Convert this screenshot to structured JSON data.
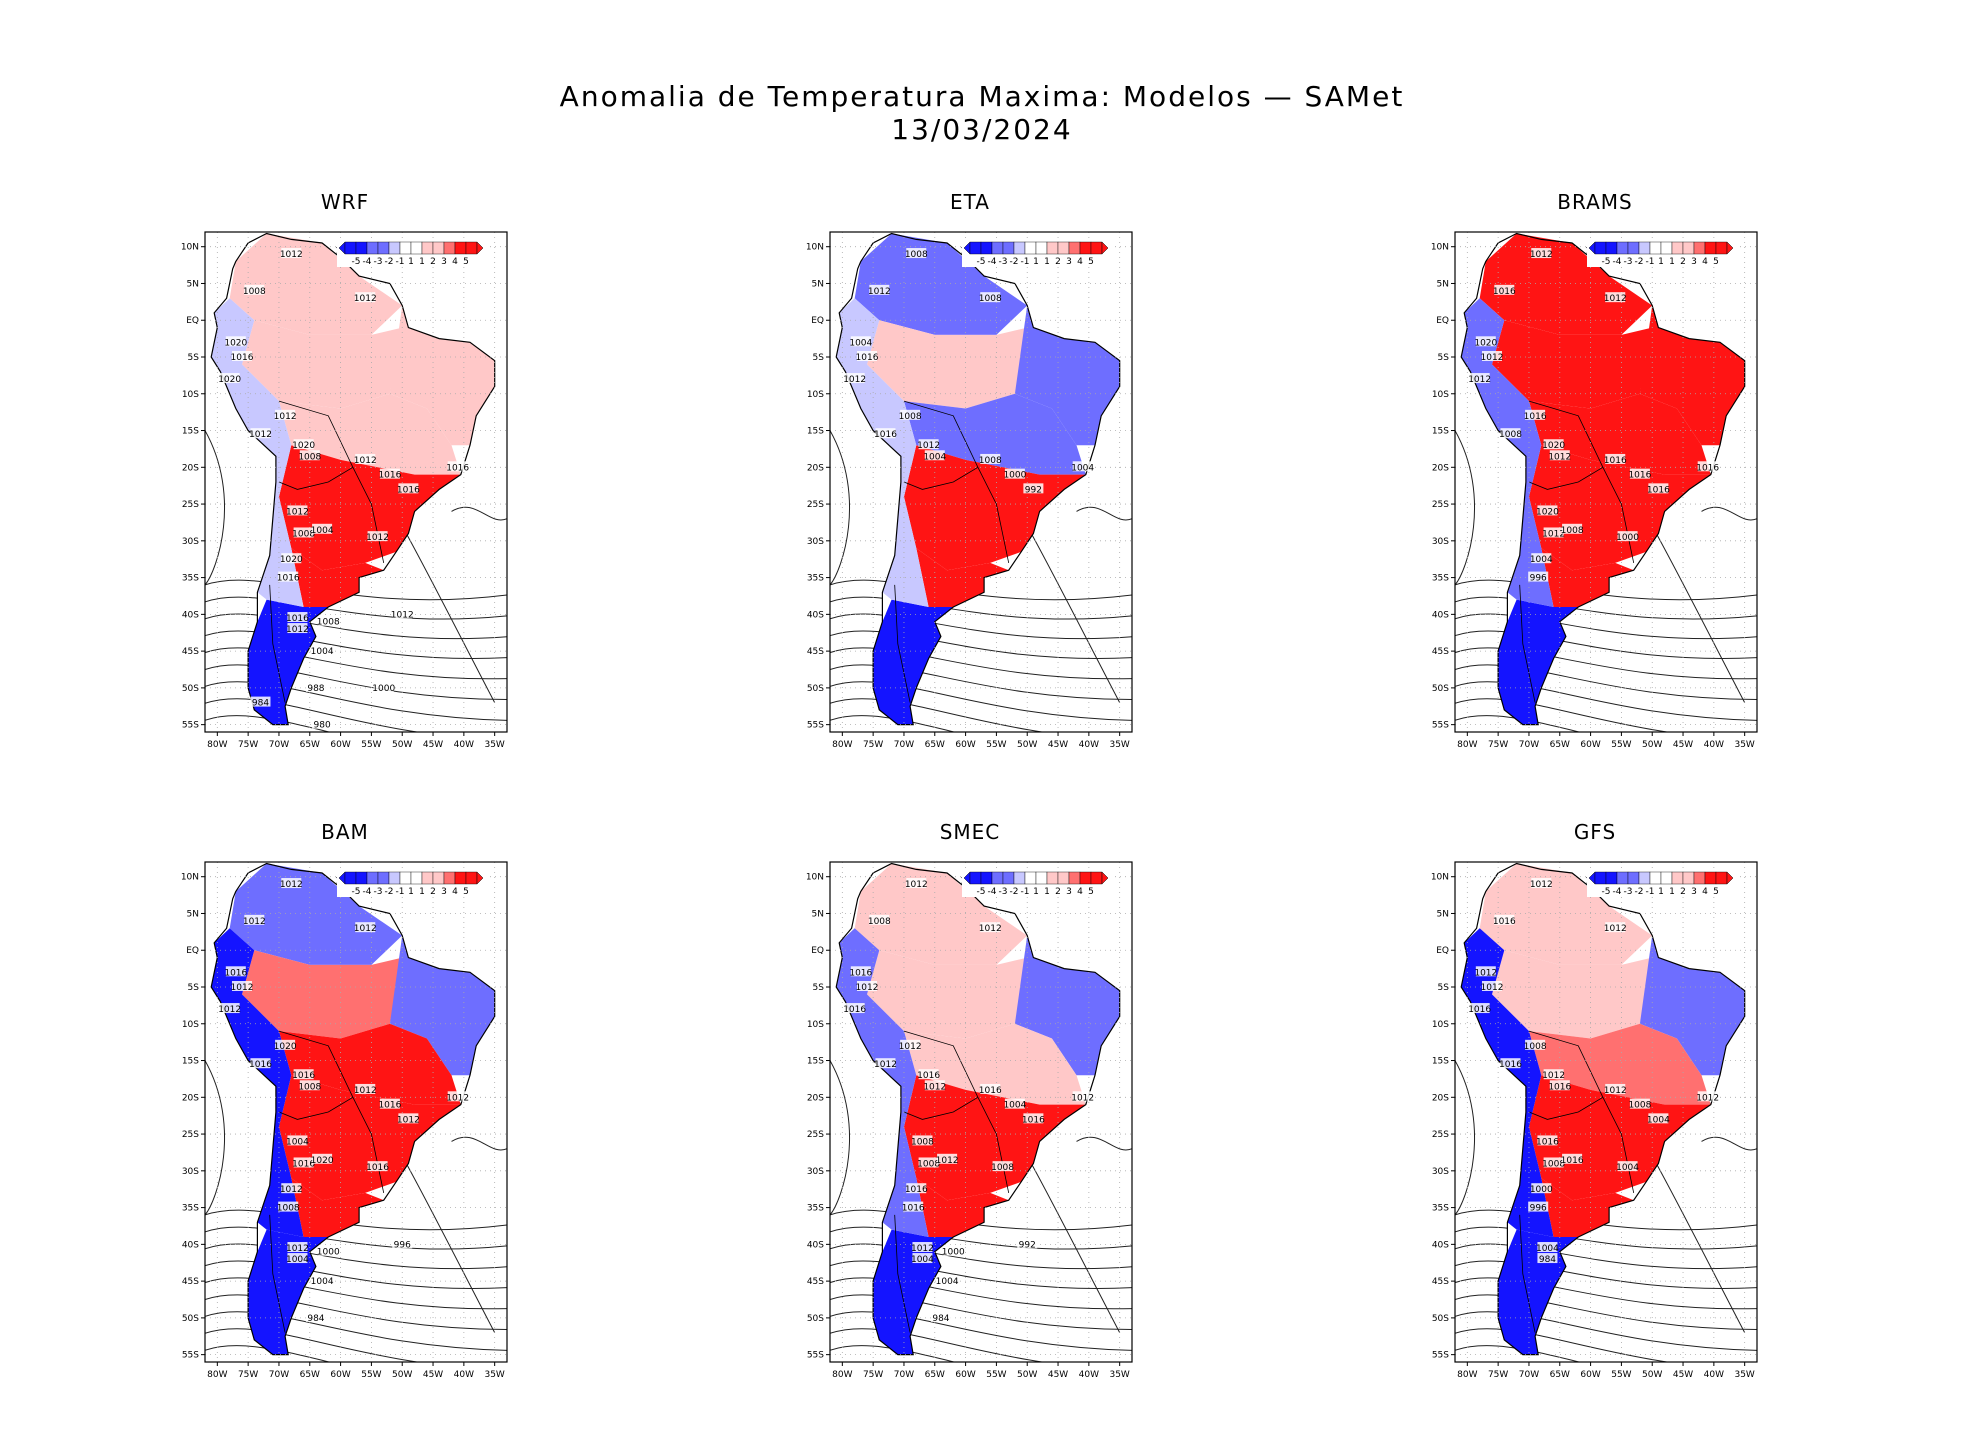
{
  "title_line1": "Anomalia de Temperatura Maxima: Modelos — SAMet",
  "title_line2": "13/03/2024",
  "colors": {
    "strong_blue": "#1414ff",
    "mid_blue": "#6e6eff",
    "light_blue": "#c8c8ff",
    "neutral": "#ffffff",
    "light_red": "#ffc8c8",
    "mid_red": "#ff7070",
    "strong_red": "#ff1414",
    "land_outline": "#000000",
    "grid": "#aaaaaa"
  },
  "colorbar_labels": [
    "-5",
    "-4",
    "-3",
    "-2",
    "-1",
    "1",
    "1",
    "2",
    "3",
    "4",
    "5"
  ],
  "lat_labels": [
    "10N",
    "5N",
    "EQ",
    "5S",
    "10S",
    "15S",
    "20S",
    "25S",
    "30S",
    "35S",
    "40S",
    "45S",
    "50S",
    "55S"
  ],
  "lon_labels": [
    "80W",
    "75W",
    "70W",
    "65W",
    "60W",
    "55W",
    "50W",
    "45W",
    "40W",
    "35W"
  ],
  "panels": [
    {
      "name": "WRF",
      "regions": {
        "north": "light_red",
        "amazon": "light_red",
        "northeast": "light_red",
        "center": "light_red",
        "south": "strong_red",
        "pampas": "strong_red",
        "patagonia": "strong_blue",
        "andes": "light_blue"
      },
      "isobars": [
        "1012",
        "1012",
        "1008",
        "1012",
        "1020",
        "1016",
        "1020",
        "1012",
        "1012",
        "1020",
        "1008",
        "1012",
        "1016",
        "1016",
        "1016",
        "1012",
        "1008",
        "1004",
        "1012",
        "1020",
        "1016",
        "1016",
        "1012",
        "1008",
        "1012",
        "1004",
        "988",
        "1000",
        "984",
        "980"
      ]
    },
    {
      "name": "ETA",
      "regions": {
        "north": "mid_blue",
        "amazon": "light_red",
        "northeast": "mid_blue",
        "center": "mid_blue",
        "south": "strong_red",
        "pampas": "strong_red",
        "patagonia": "strong_blue",
        "andes": "light_blue"
      },
      "isobars": [
        "1008",
        "1012",
        "1012",
        "1008",
        "1004",
        "1016",
        "1012",
        "1008",
        "1016",
        "1012",
        "1004",
        "1008",
        "1000",
        "992",
        "1004"
      ]
    },
    {
      "name": "BRAMS",
      "regions": {
        "north": "strong_red",
        "amazon": "strong_red",
        "northeast": "strong_red",
        "center": "strong_red",
        "south": "strong_red",
        "pampas": "strong_red",
        "patagonia": "strong_blue",
        "andes": "mid_blue"
      },
      "isobars": [
        "1012",
        "1012",
        "1016",
        "1012",
        "1020",
        "1012",
        "1012",
        "1016",
        "1008",
        "1020",
        "1012",
        "1016",
        "1016",
        "1016",
        "1016",
        "1020",
        "1012",
        "1008",
        "1000",
        "1004",
        "996"
      ]
    },
    {
      "name": "BAM",
      "regions": {
        "north": "mid_blue",
        "amazon": "mid_red",
        "northeast": "mid_blue",
        "center": "strong_red",
        "south": "strong_red",
        "pampas": "strong_red",
        "patagonia": "strong_blue",
        "andes": "strong_blue"
      },
      "isobars": [
        "1012",
        "1008",
        "1012",
        "1012",
        "1016",
        "1012",
        "1012",
        "1020",
        "1016",
        "1016",
        "1008",
        "1012",
        "1016",
        "1012",
        "1012",
        "1004",
        "1016",
        "1020",
        "1016",
        "1012",
        "1008",
        "1012",
        "1004",
        "1000",
        "996",
        "1004",
        "984"
      ]
    },
    {
      "name": "SMEC",
      "regions": {
        "north": "light_red",
        "amazon": "light_red",
        "northeast": "mid_blue",
        "center": "light_red",
        "south": "strong_red",
        "pampas": "strong_red",
        "patagonia": "strong_blue",
        "andes": "mid_blue"
      },
      "isobars": [
        "1012",
        "1012",
        "1008",
        "1012",
        "1016",
        "1012",
        "1016",
        "1012",
        "1012",
        "1016",
        "1012",
        "1016",
        "1004",
        "1016",
        "1012",
        "1008",
        "1008",
        "1012",
        "1008",
        "1016",
        "1016",
        "1012",
        "1004",
        "1000",
        "992",
        "1004",
        "984"
      ]
    },
    {
      "name": "GFS",
      "regions": {
        "north": "light_red",
        "amazon": "light_red",
        "northeast": "mid_blue",
        "center": "mid_red",
        "south": "strong_red",
        "pampas": "strong_red",
        "patagonia": "strong_blue",
        "andes": "strong_blue"
      },
      "isobars": [
        "1012",
        "1012",
        "1016",
        "1012",
        "1012",
        "1012",
        "1016",
        "1008",
        "1016",
        "1012",
        "1016",
        "1012",
        "1008",
        "1004",
        "1012",
        "1016",
        "1008",
        "1016",
        "1004",
        "1000",
        "996",
        "1004",
        "984"
      ]
    }
  ]
}
